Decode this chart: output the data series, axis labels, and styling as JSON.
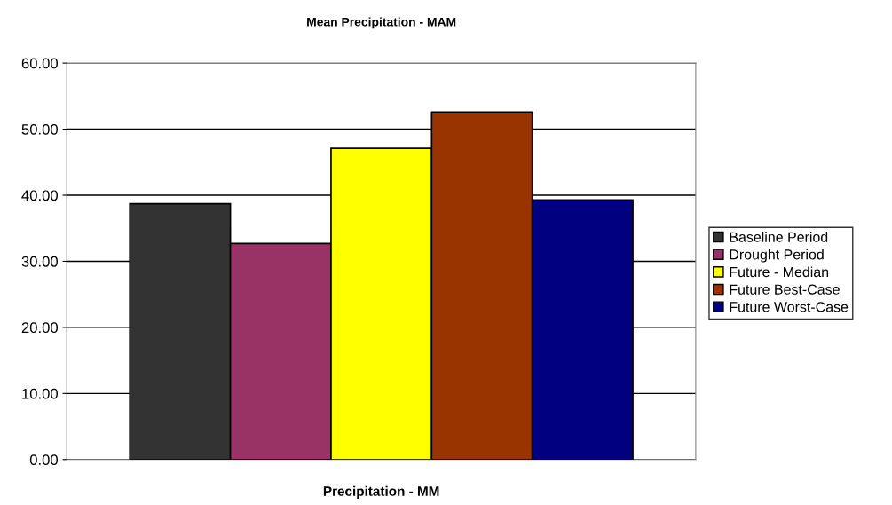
{
  "chart_data": {
    "type": "bar",
    "title": "Mean Precipitation - MAM",
    "xlabel": "Precipitation - MM",
    "categories": [
      null
    ],
    "series": [
      {
        "name": "Baseline Period",
        "color": "#333333",
        "values": [
          38.7
        ]
      },
      {
        "name": "Drought Period",
        "color": "#993366",
        "values": [
          32.7
        ]
      },
      {
        "name": "Future - Median",
        "color": "#ffff00",
        "values": [
          47.1
        ]
      },
      {
        "name": "Future Best-Case",
        "color": "#993300",
        "values": [
          52.6
        ]
      },
      {
        "name": "Future Worst-Case",
        "color": "#000080",
        "values": [
          39.3
        ]
      }
    ],
    "ylim": [
      0,
      60
    ],
    "yticks": [
      {
        "value": 0,
        "label": "0.00"
      },
      {
        "value": 10,
        "label": "10.00"
      },
      {
        "value": 20,
        "label": "20.00"
      },
      {
        "value": 30,
        "label": "30.00"
      },
      {
        "value": 40,
        "label": "40.00"
      },
      {
        "value": 50,
        "label": "50.00"
      },
      {
        "value": 60,
        "label": "60.00"
      }
    ],
    "grid": "y",
    "legend": "right"
  }
}
